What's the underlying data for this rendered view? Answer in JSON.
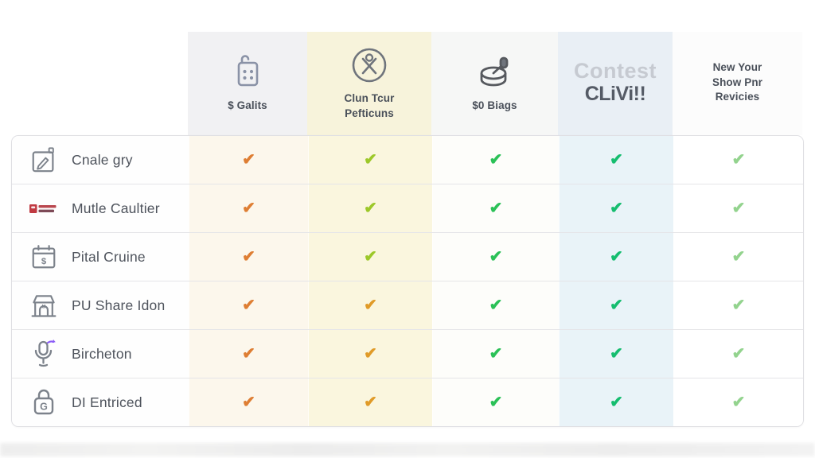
{
  "page": {
    "background": "#ffffff"
  },
  "check_glyph": "✔",
  "columns": [
    {
      "id": "galits",
      "lines": [
        "$ Galits"
      ],
      "icon": "calculator-icon",
      "header_bg": "#F1F1F3",
      "body_bg": "#FCF7EC"
    },
    {
      "id": "clun-tcur-pefticuns",
      "lines": [
        "Clun Tcur",
        "Pefticuns"
      ],
      "icon": "no-fees-circle-icon",
      "header_bg": "#F7F3DB",
      "body_bg": "#FAF6DE"
    },
    {
      "id": "zero-biags",
      "lines": [
        "$0 Biags"
      ],
      "icon": "drum-savings-icon",
      "header_bg": "#F6F7F6",
      "body_bg": "#FDFDFA"
    },
    {
      "id": "contest-clivi",
      "logo_top": "Contest",
      "logo_bottom": "CLiVi!!",
      "header_bg": "#E9EFF5",
      "body_bg": "#E9F3F8"
    },
    {
      "id": "new-your-show-pnr-revicies",
      "lines": [
        "New Your",
        "Show Pnr",
        "Revicies"
      ],
      "header_bg": "#FCFCFC",
      "body_bg": "#FFFFFF"
    }
  ],
  "rows": [
    {
      "label": "Cnale gry",
      "icon": "edit-note-icon",
      "checks": [
        "#DE7E33",
        "#9CC829",
        "#2BC157",
        "#15BD6F",
        "#93D38E"
      ]
    },
    {
      "label": "Mutle Caultier",
      "icon": "brand-flag-icon",
      "checks": [
        "#DE7E33",
        "#9CC829",
        "#2BC157",
        "#15BD6F",
        "#93D38E"
      ]
    },
    {
      "label": "Pital Cruine",
      "icon": "calendar-dollar-icon",
      "checks": [
        "#DE7E33",
        "#9CC829",
        "#2BC157",
        "#15BD6F",
        "#93D38E"
      ]
    },
    {
      "label": "PU Share Idon",
      "icon": "bank-stall-icon",
      "checks": [
        "#DE7E33",
        "#E09B28",
        "#2BC157",
        "#15BD6F",
        "#93D38E"
      ]
    },
    {
      "label": "Bircheton",
      "icon": "microphone-sync-icon",
      "checks": [
        "#DE7E33",
        "#E09B28",
        "#2BC157",
        "#15BD6F",
        "#93D38E"
      ]
    },
    {
      "label": "DI Entriced",
      "icon": "lock-g-icon",
      "checks": [
        "#DE7E33",
        "#E09B28",
        "#2BC157",
        "#15BD6F",
        "#93D38E"
      ]
    }
  ]
}
